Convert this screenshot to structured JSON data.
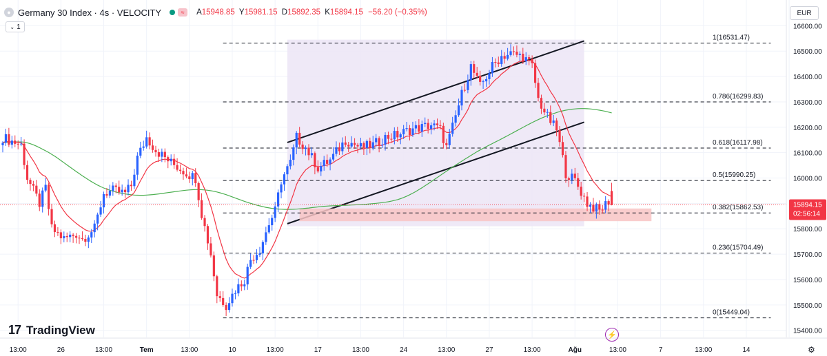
{
  "header": {
    "symbol": "Germany 30 Index · 4s · VELOCITY",
    "ohlc": [
      {
        "k": "A",
        "v": "15948.85"
      },
      {
        "k": "Y",
        "v": "15981.15"
      },
      {
        "k": "D",
        "v": "15892.35"
      },
      {
        "k": "K",
        "v": "15894.15"
      }
    ],
    "change": "−56.20 (−0.35%)",
    "indicator_count": "1",
    "currency": "EUR"
  },
  "brand": "TradingView",
  "colors": {
    "up": "#2962ff",
    "down": "#f23645",
    "ema_fast": "#f23645",
    "ema_slow": "#4caf50",
    "channel_fill": "#ede7f6",
    "zone_fill": "#f8c4c4",
    "price_label": "#f23645"
  },
  "chart_data": {
    "type": "candlestick",
    "ylim": [
      15372,
      16620
    ],
    "y_ticks": [
      15400,
      15500,
      15600,
      15700,
      15800,
      15900,
      16000,
      16100,
      16200,
      16300,
      16400,
      16500,
      16600
    ],
    "y_tick_labels": [
      "15400.00",
      "15500.00",
      "15600.00",
      "15700.00",
      "15800.00",
      "15900.00",
      "16000.00",
      "16100.00",
      "16200.00",
      "16300.00",
      "16400.00",
      "16500.00",
      "16600.00"
    ],
    "x_ticks": [
      {
        "i": 5,
        "label": "13:00"
      },
      {
        "i": 19,
        "label": "26"
      },
      {
        "i": 33,
        "label": "13:00"
      },
      {
        "i": 47,
        "label": "Tem"
      },
      {
        "i": 61,
        "label": "13:00"
      },
      {
        "i": 75,
        "label": "10"
      },
      {
        "i": 89,
        "label": "13:00"
      },
      {
        "i": 103,
        "label": "17"
      },
      {
        "i": 117,
        "label": "13:00"
      },
      {
        "i": 131,
        "label": "24"
      },
      {
        "i": 145,
        "label": "13:00"
      },
      {
        "i": 159,
        "label": "27"
      },
      {
        "i": 173,
        "label": "13:00"
      },
      {
        "i": 187,
        "label": "Ağu"
      },
      {
        "i": 201,
        "label": "13:00"
      },
      {
        "i": 215,
        "label": "7"
      },
      {
        "i": 229,
        "label": "13:00"
      },
      {
        "i": 243,
        "label": "14"
      },
      {
        "i": 257,
        "label": "13:00"
      }
    ],
    "n_slots": 270,
    "anchors": [
      [
        0,
        16160
      ],
      [
        6,
        16130
      ],
      [
        8,
        16000
      ],
      [
        12,
        15900
      ],
      [
        14,
        15960
      ],
      [
        16,
        15800
      ],
      [
        20,
        15760
      ],
      [
        24,
        15780
      ],
      [
        26,
        15760
      ],
      [
        30,
        15800
      ],
      [
        33,
        15940
      ],
      [
        36,
        15950
      ],
      [
        40,
        15940
      ],
      [
        42,
        15970
      ],
      [
        44,
        16080
      ],
      [
        47,
        16160
      ],
      [
        50,
        16110
      ],
      [
        55,
        16060
      ],
      [
        60,
        16020
      ],
      [
        63,
        16000
      ],
      [
        65,
        15860
      ],
      [
        68,
        15700
      ],
      [
        70,
        15540
      ],
      [
        73,
        15500
      ],
      [
        76,
        15560
      ],
      [
        79,
        15600
      ],
      [
        81,
        15680
      ],
      [
        84,
        15720
      ],
      [
        87,
        15820
      ],
      [
        89,
        15870
      ],
      [
        91,
        15990
      ],
      [
        94,
        16060
      ],
      [
        96,
        16160
      ],
      [
        99,
        16120
      ],
      [
        103,
        16040
      ],
      [
        107,
        16070
      ],
      [
        112,
        16150
      ],
      [
        117,
        16120
      ],
      [
        121,
        16130
      ],
      [
        125,
        16160
      ],
      [
        129,
        16170
      ],
      [
        133,
        16190
      ],
      [
        137,
        16200
      ],
      [
        140,
        16210
      ],
      [
        143,
        16190
      ],
      [
        145,
        16120
      ],
      [
        147,
        16200
      ],
      [
        150,
        16330
      ],
      [
        153,
        16440
      ],
      [
        156,
        16360
      ],
      [
        160,
        16440
      ],
      [
        163,
        16480
      ],
      [
        166,
        16490
      ],
      [
        170,
        16480
      ],
      [
        173,
        16440
      ],
      [
        175,
        16310
      ],
      [
        178,
        16240
      ],
      [
        181,
        16190
      ],
      [
        184,
        16020
      ],
      [
        187,
        15990
      ],
      [
        191,
        15900
      ],
      [
        195,
        15870
      ],
      [
        198,
        15910
      ],
      [
        199,
        15894
      ]
    ],
    "last_candle": {
      "open": 15948.85,
      "high": 15981.15,
      "low": 15892.35,
      "close": 15894.15
    },
    "fib_levels": [
      {
        "ratio": "1",
        "price": 16531.47,
        "label": "1(16531.47)"
      },
      {
        "ratio": "0.786",
        "price": 16299.83,
        "label": "0.786(16299.83)"
      },
      {
        "ratio": "0.618",
        "price": 16117.98,
        "label": "0.618(16117.98)"
      },
      {
        "ratio": "0.5",
        "price": 15990.25,
        "label": "0.5(15990.25)"
      },
      {
        "ratio": "0.382",
        "price": 15862.53,
        "label": "0.382(15862.53)"
      },
      {
        "ratio": "0.236",
        "price": 15704.49,
        "label": "0.236(15704.49)"
      },
      {
        "ratio": "0",
        "price": 15449.04,
        "label": "0(15449.04)"
      }
    ],
    "fib_x_range": [
      72,
      251
    ],
    "channel": {
      "upper": [
        [
          93,
          16140
        ],
        [
          190,
          16540
        ]
      ],
      "lower": [
        [
          93,
          15820
        ],
        [
          190,
          16220
        ]
      ],
      "box": {
        "x1": 93,
        "x2": 190,
        "y1": 15810,
        "y2": 16545
      }
    },
    "support_zone": {
      "x1": 97,
      "x2": 212,
      "y1": 15830,
      "y2": 15880
    },
    "current_price": {
      "value": 15894.15,
      "label": "15894.15",
      "countdown": "02:56:14"
    }
  }
}
